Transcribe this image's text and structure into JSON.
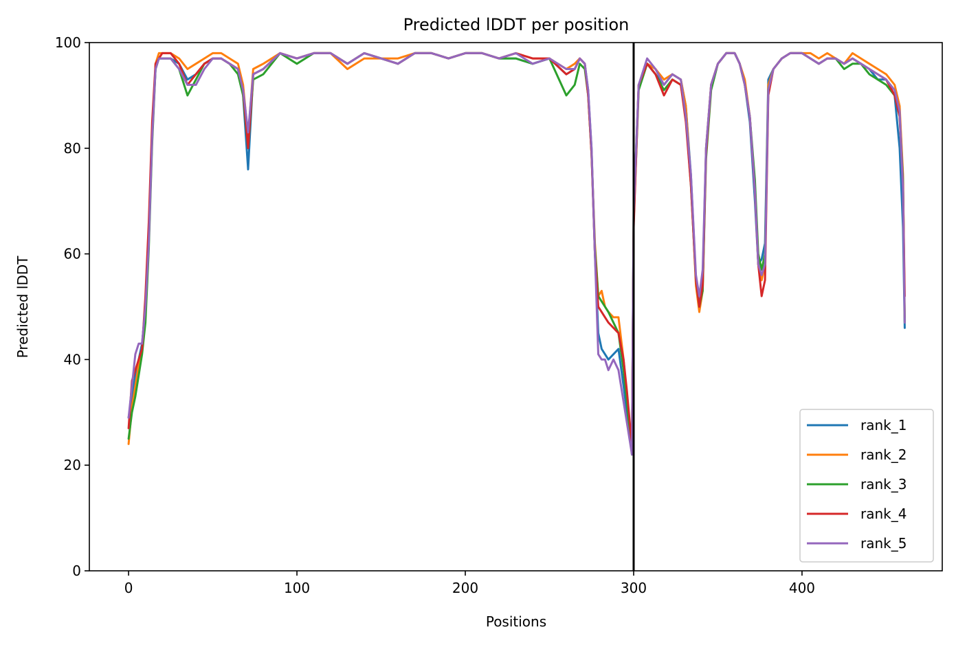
{
  "chart_data": {
    "type": "line",
    "title": "Predicted lDDT per position",
    "xlabel": "Positions",
    "ylabel": "Predicted lDDT",
    "xlim": [
      -23.3,
      483.3
    ],
    "ylim": [
      0,
      100
    ],
    "xticks": [
      0,
      100,
      200,
      300,
      400
    ],
    "yticks": [
      0,
      20,
      40,
      60,
      80,
      100
    ],
    "grid": false,
    "legend_position": "lower-right",
    "chain_break": 300,
    "series": [
      {
        "name": "rank_1",
        "color": "#1f77b4",
        "x": [
          0,
          2,
          4,
          6,
          8,
          10,
          12,
          14,
          16,
          18,
          20,
          25,
          30,
          35,
          40,
          45,
          50,
          55,
          60,
          65,
          68,
          71,
          74,
          80,
          90,
          100,
          110,
          120,
          130,
          140,
          150,
          160,
          170,
          180,
          190,
          200,
          210,
          220,
          230,
          240,
          250,
          260,
          265,
          268,
          271,
          273,
          275,
          277,
          279,
          281,
          283,
          285,
          288,
          291,
          294,
          296,
          298,
          299,
          300,
          303,
          308,
          313,
          318,
          323,
          328,
          331,
          334,
          337,
          339,
          341,
          343,
          346,
          350,
          355,
          360,
          363,
          366,
          369,
          372,
          374,
          376,
          378,
          380,
          383,
          388,
          393,
          400,
          405,
          410,
          415,
          420,
          425,
          430,
          435,
          440,
          445,
          450,
          455,
          458,
          460,
          461
        ],
        "y": [
          29,
          33,
          37,
          40,
          43,
          50,
          64,
          83,
          95,
          97,
          97,
          97,
          96,
          93,
          94,
          96,
          97,
          97,
          96,
          95,
          90,
          76,
          94,
          95,
          98,
          97,
          98,
          98,
          96,
          98,
          97,
          96,
          98,
          98,
          97,
          98,
          98,
          97,
          97,
          96,
          97,
          94,
          95,
          97,
          96,
          91,
          80,
          60,
          45,
          42,
          41,
          40,
          41,
          42,
          35,
          30,
          25,
          23,
          68,
          92,
          96,
          94,
          92,
          94,
          93,
          88,
          75,
          55,
          50,
          55,
          80,
          92,
          96,
          98,
          98,
          96,
          92,
          85,
          70,
          58,
          59,
          62,
          93,
          95,
          97,
          98,
          98,
          97,
          96,
          97,
          97,
          96,
          97,
          96,
          95,
          93,
          93,
          90,
          80,
          65,
          46
        ]
      },
      {
        "name": "rank_2",
        "color": "#ff7f0e",
        "x": [
          0,
          2,
          4,
          6,
          8,
          10,
          12,
          14,
          16,
          18,
          20,
          25,
          30,
          35,
          40,
          45,
          50,
          55,
          60,
          65,
          68,
          71,
          74,
          80,
          90,
          100,
          110,
          120,
          130,
          140,
          150,
          160,
          170,
          180,
          190,
          200,
          210,
          220,
          230,
          240,
          250,
          260,
          265,
          268,
          271,
          273,
          275,
          277,
          279,
          281,
          283,
          285,
          288,
          291,
          294,
          296,
          298,
          299,
          300,
          303,
          308,
          313,
          318,
          323,
          328,
          331,
          334,
          337,
          339,
          341,
          343,
          346,
          350,
          355,
          360,
          363,
          366,
          369,
          372,
          374,
          376,
          378,
          380,
          383,
          388,
          393,
          400,
          405,
          410,
          415,
          420,
          425,
          430,
          435,
          440,
          445,
          450,
          455,
          458,
          460,
          461
        ],
        "y": [
          24,
          31,
          35,
          39,
          42,
          49,
          63,
          82,
          96,
          98,
          98,
          98,
          97,
          95,
          96,
          97,
          98,
          98,
          97,
          96,
          92,
          82,
          95,
          96,
          98,
          97,
          98,
          98,
          95,
          97,
          97,
          97,
          98,
          98,
          97,
          98,
          98,
          97,
          98,
          97,
          97,
          95,
          96,
          97,
          96,
          90,
          79,
          62,
          52,
          53,
          50,
          49,
          48,
          48,
          40,
          33,
          26,
          23,
          67,
          92,
          96,
          95,
          93,
          94,
          93,
          88,
          74,
          54,
          49,
          53,
          80,
          92,
          96,
          98,
          98,
          96,
          93,
          86,
          72,
          58,
          55,
          58,
          92,
          95,
          97,
          98,
          98,
          98,
          97,
          98,
          97,
          96,
          98,
          97,
          96,
          95,
          94,
          92,
          88,
          75,
          48
        ]
      },
      {
        "name": "rank_3",
        "color": "#2ca02c",
        "x": [
          0,
          2,
          4,
          6,
          8,
          10,
          12,
          14,
          16,
          18,
          20,
          25,
          30,
          35,
          40,
          45,
          50,
          55,
          60,
          65,
          68,
          71,
          74,
          80,
          90,
          100,
          110,
          120,
          130,
          140,
          150,
          160,
          170,
          180,
          190,
          200,
          210,
          220,
          230,
          240,
          250,
          260,
          265,
          268,
          271,
          273,
          275,
          277,
          279,
          281,
          283,
          285,
          288,
          291,
          294,
          296,
          298,
          299,
          300,
          303,
          308,
          313,
          318,
          323,
          328,
          331,
          334,
          337,
          339,
          341,
          343,
          346,
          350,
          355,
          360,
          363,
          366,
          369,
          372,
          374,
          376,
          378,
          380,
          383,
          388,
          393,
          400,
          405,
          410,
          415,
          420,
          425,
          430,
          435,
          440,
          445,
          450,
          455,
          458,
          460,
          461
        ],
        "y": [
          25,
          30,
          33,
          37,
          41,
          47,
          61,
          81,
          95,
          97,
          97,
          97,
          95,
          90,
          93,
          96,
          97,
          97,
          96,
          94,
          90,
          80,
          93,
          94,
          98,
          96,
          98,
          98,
          96,
          98,
          97,
          96,
          98,
          98,
          97,
          98,
          98,
          97,
          97,
          96,
          97,
          90,
          92,
          96,
          95,
          90,
          79,
          61,
          52,
          51,
          50,
          49,
          47,
          45,
          38,
          32,
          25,
          22,
          66,
          91,
          96,
          94,
          91,
          93,
          92,
          86,
          73,
          55,
          50,
          53,
          78,
          91,
          96,
          98,
          98,
          96,
          92,
          86,
          74,
          60,
          57,
          60,
          91,
          95,
          97,
          98,
          98,
          97,
          96,
          97,
          97,
          95,
          96,
          96,
          94,
          93,
          92,
          90,
          86,
          74,
          47
        ]
      },
      {
        "name": "rank_4",
        "color": "#d62728",
        "x": [
          0,
          2,
          4,
          6,
          8,
          10,
          12,
          14,
          16,
          18,
          20,
          25,
          30,
          35,
          40,
          45,
          50,
          55,
          60,
          65,
          68,
          71,
          74,
          80,
          90,
          100,
          110,
          120,
          130,
          140,
          150,
          160,
          170,
          180,
          190,
          200,
          210,
          220,
          230,
          240,
          250,
          260,
          265,
          268,
          271,
          273,
          275,
          277,
          279,
          281,
          283,
          285,
          288,
          291,
          294,
          296,
          298,
          299,
          300,
          303,
          308,
          313,
          318,
          323,
          328,
          331,
          334,
          337,
          339,
          341,
          343,
          346,
          350,
          355,
          360,
          363,
          366,
          369,
          372,
          374,
          376,
          378,
          380,
          383,
          388,
          393,
          400,
          405,
          410,
          415,
          420,
          425,
          430,
          435,
          440,
          445,
          450,
          455,
          458,
          460,
          461
        ],
        "y": [
          27,
          36,
          38,
          40,
          42,
          52,
          66,
          85,
          96,
          97,
          98,
          98,
          96,
          92,
          94,
          96,
          97,
          97,
          96,
          95,
          91,
          80,
          94,
          95,
          98,
          97,
          98,
          98,
          96,
          98,
          97,
          96,
          98,
          98,
          97,
          98,
          98,
          97,
          98,
          97,
          97,
          94,
          95,
          97,
          96,
          90,
          79,
          60,
          50,
          49,
          48,
          47,
          46,
          45,
          40,
          34,
          27,
          24,
          65,
          92,
          96,
          94,
          90,
          93,
          92,
          85,
          73,
          55,
          50,
          54,
          79,
          92,
          96,
          98,
          98,
          96,
          92,
          86,
          72,
          58,
          52,
          55,
          90,
          95,
          97,
          98,
          98,
          97,
          96,
          97,
          97,
          96,
          97,
          96,
          95,
          94,
          93,
          90,
          86,
          73,
          52
        ]
      },
      {
        "name": "rank_5",
        "color": "#9467bd",
        "x": [
          0,
          2,
          4,
          6,
          8,
          10,
          12,
          14,
          16,
          18,
          20,
          25,
          30,
          35,
          40,
          45,
          50,
          55,
          60,
          65,
          68,
          71,
          74,
          80,
          90,
          100,
          110,
          120,
          130,
          140,
          150,
          160,
          170,
          180,
          190,
          200,
          210,
          220,
          230,
          240,
          250,
          260,
          265,
          268,
          271,
          273,
          275,
          277,
          279,
          281,
          283,
          285,
          288,
          291,
          294,
          296,
          298,
          299,
          300,
          303,
          308,
          313,
          318,
          323,
          328,
          331,
          334,
          337,
          339,
          341,
          343,
          346,
          350,
          355,
          360,
          363,
          366,
          369,
          372,
          374,
          376,
          378,
          380,
          383,
          388,
          393,
          400,
          405,
          410,
          415,
          420,
          425,
          430,
          435,
          440,
          445,
          450,
          455,
          458,
          460,
          461
        ],
        "y": [
          29,
          35,
          41,
          43,
          43,
          50,
          62,
          82,
          95,
          97,
          97,
          97,
          95,
          92,
          92,
          95,
          97,
          97,
          96,
          95,
          91,
          83,
          94,
          95,
          98,
          97,
          98,
          98,
          96,
          98,
          97,
          96,
          98,
          98,
          97,
          98,
          98,
          97,
          98,
          96,
          97,
          95,
          95,
          97,
          96,
          91,
          80,
          60,
          41,
          40,
          40,
          38,
          40,
          38,
          32,
          28,
          24,
          22,
          68,
          92,
          97,
          95,
          92,
          94,
          93,
          86,
          75,
          56,
          52,
          57,
          80,
          92,
          96,
          98,
          98,
          96,
          92,
          86,
          72,
          58,
          56,
          58,
          91,
          95,
          97,
          98,
          98,
          97,
          96,
          97,
          97,
          96,
          97,
          96,
          95,
          94,
          93,
          91,
          87,
          72,
          47
        ]
      }
    ]
  }
}
